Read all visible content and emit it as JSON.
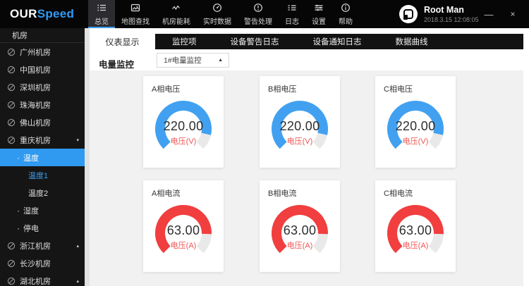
{
  "window": {
    "minimize": "—",
    "close": "×"
  },
  "header": {
    "logo": {
      "part1": "OUR",
      "part2": "Speed"
    },
    "nav": [
      {
        "label": "总览",
        "icon": "overview-list-icon",
        "active": true
      },
      {
        "label": "地图查找",
        "icon": "map-search-icon",
        "active": false
      },
      {
        "label": "机房能耗",
        "icon": "energy-wave-icon",
        "active": false
      },
      {
        "label": "实时数据",
        "icon": "realtime-gauge-icon",
        "active": false
      },
      {
        "label": "警告处理",
        "icon": "alert-icon",
        "active": false
      },
      {
        "label": "日志",
        "icon": "log-icon",
        "active": false
      },
      {
        "label": "设置",
        "icon": "settings-sliders-icon",
        "active": false
      },
      {
        "label": "帮助",
        "icon": "help-icon",
        "active": false
      }
    ],
    "user": {
      "name": "Root Man",
      "datetime": "2018.3.15 12:08:05"
    }
  },
  "sidebar": {
    "title": "机房",
    "bullet": "·",
    "items": [
      {
        "label": "广州机房",
        "type": "room"
      },
      {
        "label": "中国机房",
        "type": "room"
      },
      {
        "label": "深圳机房",
        "type": "room"
      },
      {
        "label": "珠海机房",
        "type": "room"
      },
      {
        "label": "佛山机房",
        "type": "room"
      },
      {
        "label": "重庆机房",
        "type": "room",
        "arrow": "▾",
        "expanded": true
      },
      {
        "label": "温度",
        "type": "sub",
        "selected": true
      },
      {
        "label": "温度1",
        "type": "subsub",
        "selected": true
      },
      {
        "label": "温度2",
        "type": "subsub"
      },
      {
        "label": "湿度",
        "type": "sub"
      },
      {
        "label": "停电",
        "type": "sub"
      },
      {
        "label": "浙江机房",
        "type": "room",
        "arrow": "▴"
      },
      {
        "label": "长沙机房",
        "type": "room"
      },
      {
        "label": "湖北机房",
        "type": "room",
        "arrow": "▴"
      }
    ]
  },
  "tabs": [
    {
      "label": "仪表显示",
      "active": true
    },
    {
      "label": "监控项",
      "active": false
    },
    {
      "label": "设备警告日志",
      "active": false
    },
    {
      "label": "设备通知日志",
      "active": false
    },
    {
      "label": "数据曲线",
      "active": false
    }
  ],
  "filter": {
    "label": "电量监控",
    "selected": "1#电量监控",
    "caret": "▲"
  },
  "chart_data": {
    "type": "gauge",
    "gauges": [
      {
        "title": "A相电压",
        "value": 220,
        "max": 250,
        "value_display": "220.00",
        "unit_label": "电压(V)",
        "color": "blue"
      },
      {
        "title": "B相电压",
        "value": 220,
        "max": 250,
        "value_display": "220.00",
        "unit_label": "电压(V)",
        "color": "blue"
      },
      {
        "title": "C相电压",
        "value": 220,
        "max": 250,
        "value_display": "220.00",
        "unit_label": "电压(V)",
        "color": "blue"
      },
      {
        "title": "A相电流",
        "value": 63,
        "max": 75,
        "value_display": "63.00",
        "unit_label": "电压(A)",
        "color": "red"
      },
      {
        "title": "B相电流",
        "value": 63,
        "max": 75,
        "value_display": "63.00",
        "unit_label": "电压(A)",
        "color": "red"
      },
      {
        "title": "C相电流",
        "value": 63,
        "max": 75,
        "value_display": "63.00",
        "unit_label": "电压(A)",
        "color": "red"
      }
    ]
  },
  "colors": {
    "accent": "#3E9FF3",
    "gauge_blue": "#41A1F0",
    "gauge_red": "#F13E3E",
    "gauge_track": "#E9E9E9",
    "unit_label_red": "#F15353",
    "selected_row_blue": "#2F9AF0"
  }
}
